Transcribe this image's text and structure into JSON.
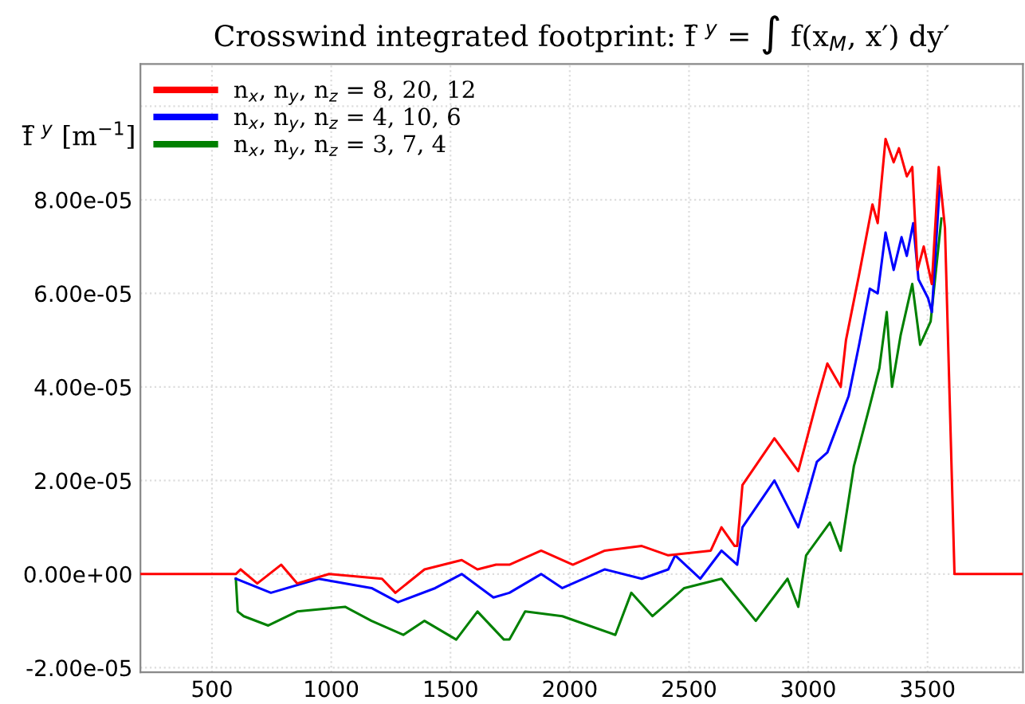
{
  "chart_data": {
    "type": "line",
    "title": "Crosswind integrated footprint: f̄ $^{y}$ = ∫ f(x$_{M}$, x′) dy′",
    "ylabel": "f̄ $^{y}$ [m$^{−1}$]",
    "xlim": [
      200,
      3900
    ],
    "ylim": [
      -2.1e-05,
      0.000109
    ],
    "xticks": [
      500,
      1000,
      1500,
      2000,
      2500,
      3000,
      3500
    ],
    "yticks": [
      {
        "value": -2e-05,
        "label": "-2.00e-05"
      },
      {
        "value": 0,
        "label": "0.00e+00"
      },
      {
        "value": 2e-05,
        "label": "2.00e-05"
      },
      {
        "value": 4e-05,
        "label": "4.00e-05"
      },
      {
        "value": 6e-05,
        "label": "6.00e-05"
      },
      {
        "value": 8e-05,
        "label": "8.00e-05"
      },
      {
        "value": 0.0001,
        "label": null
      }
    ],
    "grid": true,
    "legend": "top left",
    "line_style": "solid",
    "marker": "none",
    "series": [
      {
        "name": "n$_{x}$, n$_{y}$, n$_{z}$ = 8, 20, 12",
        "color": "#ff0000",
        "x": [
          200,
          600,
          620,
          690,
          790,
          857,
          991,
          1213,
          1269,
          1391,
          1547,
          1613,
          1691,
          1747,
          1880,
          2013,
          2147,
          2302,
          2413,
          2591,
          2636,
          2691,
          2702,
          2724,
          2858,
          2958,
          3036,
          3080,
          3136,
          3158,
          3213,
          3269,
          3291,
          3324,
          3358,
          3380,
          3413,
          3436,
          3458,
          3484,
          3518,
          3547,
          3573,
          3613,
          3630,
          3900
        ],
        "values": [
          0,
          0,
          1e-06,
          -2e-06,
          2e-06,
          -2e-06,
          0,
          -1e-06,
          -4e-06,
          1e-06,
          3e-06,
          1e-06,
          2e-06,
          2e-06,
          5e-06,
          2e-06,
          5e-06,
          6e-06,
          4e-06,
          5e-06,
          1e-05,
          6e-06,
          6e-06,
          1.9e-05,
          2.9e-05,
          2.2e-05,
          3.7e-05,
          4.5e-05,
          4e-05,
          5e-05,
          6.4e-05,
          7.9e-05,
          7.5e-05,
          9.3e-05,
          8.8e-05,
          9.1e-05,
          8.5e-05,
          8.7e-05,
          6.5e-05,
          7e-05,
          6.2e-05,
          8.7e-05,
          7.4e-05,
          0,
          0,
          0
        ]
      },
      {
        "name": "n$_{x}$, n$_{y}$, n$_{z}$ = 4, 10, 6",
        "color": "#0000ff",
        "x": [
          600,
          747,
          947,
          1169,
          1280,
          1436,
          1547,
          1680,
          1747,
          1880,
          1969,
          2147,
          2302,
          2413,
          2442,
          2547,
          2636,
          2702,
          2724,
          2858,
          2958,
          3036,
          3080,
          3169,
          3213,
          3258,
          3291,
          3324,
          3358,
          3391,
          3413,
          3440,
          3462,
          3502,
          3518,
          3551
        ],
        "values": [
          -1e-06,
          -4e-06,
          -1e-06,
          -3e-06,
          -6e-06,
          -3e-06,
          0,
          -5e-06,
          -4e-06,
          0,
          -3e-06,
          1e-06,
          -1e-06,
          1e-06,
          4e-06,
          -1e-06,
          5e-06,
          2e-06,
          1e-05,
          2e-05,
          1e-05,
          2.4e-05,
          2.6e-05,
          3.8e-05,
          4.9e-05,
          6.1e-05,
          6e-05,
          7.3e-05,
          6.5e-05,
          7.2e-05,
          6.8e-05,
          7.5e-05,
          6.3e-05,
          5.9e-05,
          5.6e-05,
          8.3e-05
        ]
      },
      {
        "name": "n$_{x}$, n$_{y}$, n$_{z}$ = 3, 7, 4",
        "color": "#008000",
        "x": [
          600,
          608,
          633,
          736,
          857,
          1058,
          1169,
          1302,
          1391,
          1524,
          1613,
          1724,
          1747,
          1813,
          1969,
          2080,
          2191,
          2258,
          2347,
          2480,
          2636,
          2780,
          2913,
          2958,
          2991,
          3091,
          3136,
          3191,
          3258,
          3298,
          3329,
          3351,
          3387,
          3436,
          3469,
          3513,
          3558
        ],
        "values": [
          -1e-06,
          -8e-06,
          -9e-06,
          -1.1e-05,
          -8e-06,
          -7e-06,
          -1e-05,
          -1.3e-05,
          -1e-05,
          -1.4e-05,
          -8e-06,
          -1.4e-05,
          -1.4e-05,
          -8e-06,
          -9e-06,
          -1.1e-05,
          -1.3e-05,
          -4e-06,
          -9e-06,
          -3e-06,
          -1e-06,
          -1e-05,
          -1e-06,
          -7e-06,
          4e-06,
          1.1e-05,
          5e-06,
          2.3e-05,
          3.6e-05,
          4.4e-05,
          5.6e-05,
          4e-05,
          5.1e-05,
          6.2e-05,
          4.9e-05,
          5.4e-05,
          7.6e-05
        ]
      }
    ]
  }
}
